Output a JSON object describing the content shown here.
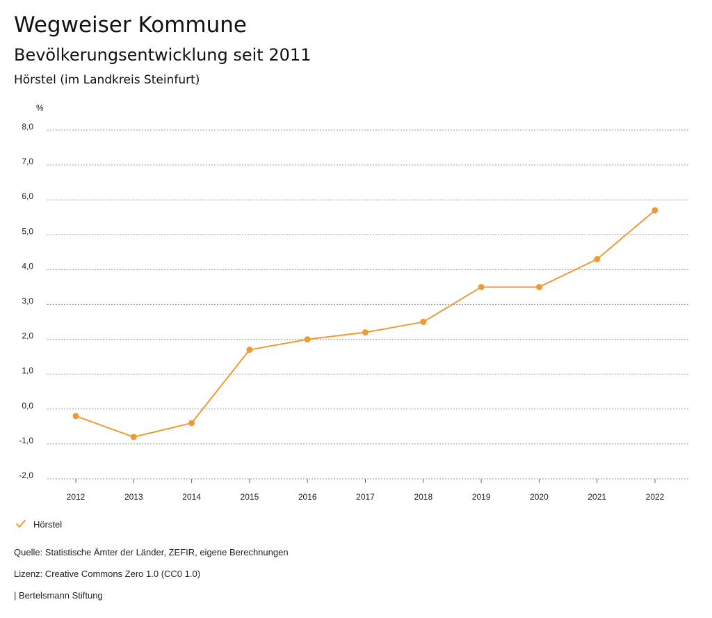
{
  "header": {
    "title": "Wegweiser Kommune",
    "subtitle": "Bevölkerungsentwicklung seit 2011",
    "region": "Hörstel (im Landkreis Steinfurt)"
  },
  "chart_data": {
    "type": "line",
    "title": "Bevölkerungsentwicklung seit 2011",
    "ylabel": "%",
    "xlabel": "",
    "x": [
      "2012",
      "2013",
      "2014",
      "2015",
      "2016",
      "2017",
      "2018",
      "2019",
      "2020",
      "2021",
      "2022"
    ],
    "series": [
      {
        "name": "Hörstel",
        "color": "#ee9b35",
        "values": [
          -0.2,
          -0.8,
          -0.4,
          1.7,
          2.0,
          2.2,
          2.5,
          3.5,
          3.5,
          4.3,
          5.7
        ]
      }
    ],
    "ylim": [
      -2.0,
      8.0
    ],
    "yticks": [
      8.0,
      7.0,
      6.0,
      5.0,
      4.0,
      3.0,
      2.0,
      1.0,
      0.0,
      -1.0,
      -2.0
    ],
    "ytick_labels": [
      "8,0",
      "7,0",
      "6,0",
      "5,0",
      "4,0",
      "3,0",
      "2,0",
      "1,0",
      "0,0",
      "-1,0",
      "-2,0"
    ],
    "grid": true,
    "legend": "bottom-left"
  },
  "legend": {
    "label": "Hörstel",
    "icon": "check-icon"
  },
  "footer": {
    "source": "Quelle: Statistische Ämter der Länder, ZEFIR, eigene Berechnungen",
    "license": "Lizenz: Creative Commons Zero 1.0 (CC0 1.0)",
    "publisher": "| Bertelsmann Stiftung"
  }
}
